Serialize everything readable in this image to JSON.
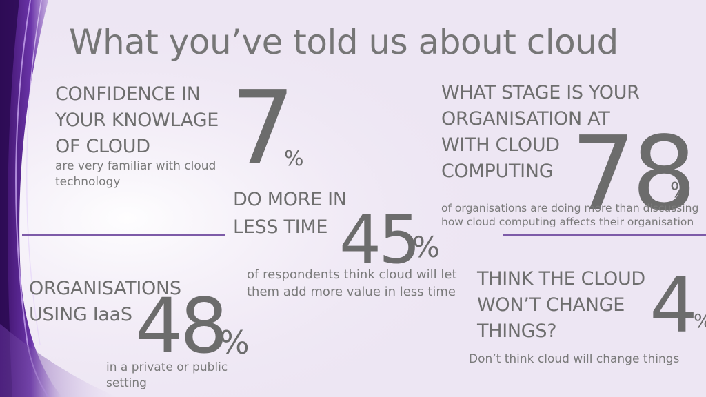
{
  "title": "What you’ve told us about cloud",
  "stats": {
    "confidence": {
      "heading_lines": [
        "CONFIDENCE IN",
        "YOUR KNOWLAGE",
        "OF CLOUD"
      ],
      "value": "7",
      "unit": "%",
      "caption_lines": [
        "are very familiar with cloud",
        "technology"
      ]
    },
    "stage": {
      "heading_lines": [
        "WHAT STAGE IS YOUR",
        "ORGANISATION AT",
        "WITH CLOUD",
        "COMPUTING"
      ],
      "value": "78",
      "unit": "%",
      "caption_lines": [
        "of organisations are doing more than discussing",
        "how cloud computing affects their organisation"
      ]
    },
    "do_more": {
      "heading_lines": [
        "DO MORE IN",
        "LESS TIME"
      ],
      "value": "45",
      "unit": "%",
      "caption_lines": [
        "of respondents think cloud will let",
        "them add more value in less time"
      ]
    },
    "iaas": {
      "heading_lines": [
        "ORGANISATIONS",
        "USING IaaS"
      ],
      "value": "48",
      "unit": "%",
      "caption_lines": [
        "in a private or public",
        "setting"
      ]
    },
    "no_change": {
      "heading_lines": [
        "THINK THE CLOUD",
        "WON’T CHANGE",
        "THINGS?"
      ],
      "value": "4",
      "unit": "%",
      "caption_lines": [
        "Don’t think cloud will change things"
      ]
    }
  },
  "colors": {
    "background": "#ede6f3",
    "text": "#707070",
    "accent_rule": "#7d5ba8",
    "swoosh_dark": "#4a1a78",
    "swoosh_light": "#b088e0"
  }
}
